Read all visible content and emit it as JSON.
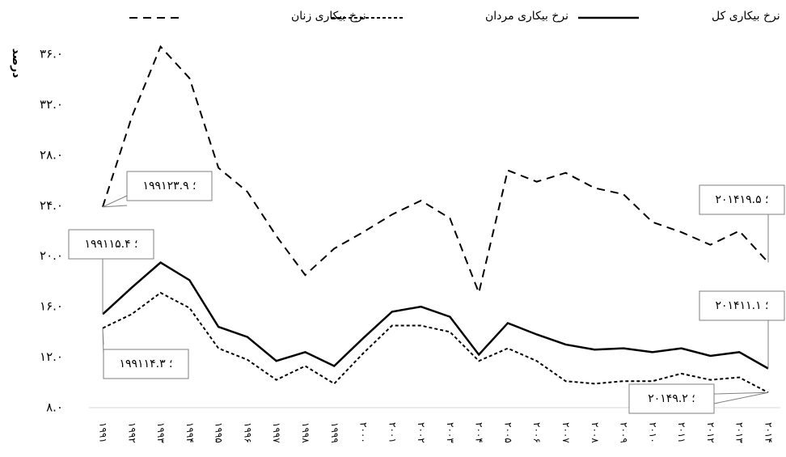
{
  "chart_data": {
    "type": "line",
    "y_label": "درصد",
    "categories": [
      "۱۹۹۱",
      "۱۹۹۲",
      "۱۹۹۳",
      "۱۹۹۴",
      "۱۹۹۵",
      "۱۹۹۶",
      "۱۹۹۷",
      "۱۹۹۸",
      "۱۹۹۹",
      "۲۰۰۰",
      "۲۰۰۱",
      "۲۰۰۲",
      "۲۰۰۳",
      "۲۰۰۴",
      "۲۰۰۵",
      "۲۰۰۶",
      "۲۰۰۷",
      "۲۰۰۸",
      "۲۰۰۹",
      "۲۰۱۰",
      "۲۰۱۱",
      "۲۰۱۲",
      "۲۰۱۳",
      "۲۰۱۴"
    ],
    "series": [
      {
        "name": "نرخ بیکاری زنان",
        "color": "#000000",
        "dash": "10,7",
        "values": [
          23.9,
          31.0,
          36.6,
          34.1,
          27.0,
          25.1,
          21.6,
          18.5,
          20.6,
          21.9,
          23.3,
          24.4,
          23.0,
          17.1,
          26.8,
          25.9,
          26.6,
          25.4,
          24.9,
          22.7,
          21.9,
          20.9,
          22.0,
          19.5
        ]
      },
      {
        "name": "نرخ بیکاری مردان",
        "color": "#000000",
        "dash": "4,3",
        "values": [
          14.3,
          15.4,
          17.1,
          15.9,
          12.7,
          11.8,
          10.2,
          11.3,
          9.9,
          12.3,
          14.5,
          14.5,
          14.0,
          11.7,
          12.7,
          11.7,
          10.1,
          9.9,
          10.1,
          10.1,
          10.7,
          10.2,
          10.4,
          9.2
        ]
      },
      {
        "name": "نرخ بیکاری کل",
        "color": "#000000",
        "dash": "none",
        "values": [
          15.4,
          17.5,
          19.5,
          18.1,
          14.4,
          13.6,
          11.7,
          12.4,
          11.3,
          13.5,
          15.6,
          16.0,
          15.2,
          12.2,
          14.7,
          13.8,
          13.0,
          12.6,
          12.7,
          12.4,
          12.7,
          12.1,
          12.4,
          11.1
        ]
      }
    ],
    "annotations": [
      "۱۹۹۱؛ ۲۳.۹",
      "۱۹۹۱؛ ۱۵.۴",
      "۱۹۹۱؛ ۱۴.۳",
      "۲۰۱۴؛ ۱۹.۵",
      "۲۰۱۴؛ ۱۱.۱",
      "۲۰۱۴؛ ۹.۲"
    ],
    "ylim": [
      8,
      36
    ],
    "yticks": [
      {
        "value": 8,
        "label": "۸.۰"
      },
      {
        "value": 12,
        "label": "۱۲.۰"
      },
      {
        "value": 16,
        "label": "۱۶.۰"
      },
      {
        "value": 20,
        "label": "۲۰.۰"
      },
      {
        "value": 24,
        "label": "۲۴.۰"
      },
      {
        "value": 28,
        "label": "۲۸.۰"
      },
      {
        "value": 32,
        "label": "۳۲.۰"
      },
      {
        "value": 36,
        "label": "۳۶.۰"
      }
    ],
    "legend": "top",
    "grid": false
  }
}
